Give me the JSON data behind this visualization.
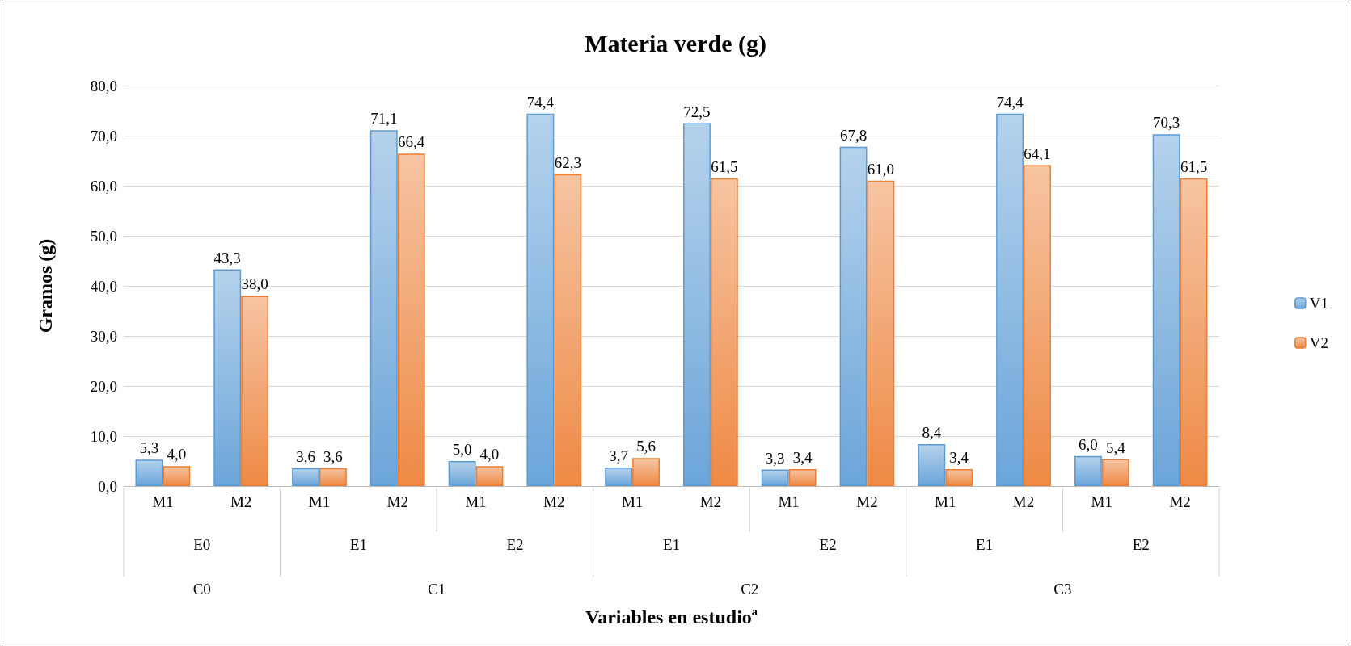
{
  "chart_data": {
    "type": "bar",
    "title": "Materia verde (g)",
    "xlabel": "Variables en estudioª",
    "ylabel": "Gramos (g)",
    "categories": [
      "M1",
      "M2",
      "M1",
      "M2",
      "M1",
      "M2",
      "M1",
      "M2",
      "M1",
      "M2",
      "M1",
      "M2",
      "M1",
      "M2"
    ],
    "series": [
      {
        "name": "V1",
        "color": "#5b9bd5",
        "values": [
          5.3,
          43.3,
          3.6,
          71.1,
          5.0,
          74.4,
          3.7,
          72.5,
          3.3,
          67.8,
          8.4,
          74.4,
          6.0,
          70.3
        ],
        "value_labels": [
          "5,3",
          "43,3",
          "3,6",
          "71,1",
          "5,0",
          "74,4",
          "3,7",
          "72,5",
          "3,3",
          "67,8",
          "8,4",
          "74,4",
          "6,0",
          "70,3"
        ]
      },
      {
        "name": "V2",
        "color": "#ed7d31",
        "values": [
          4.0,
          38.0,
          3.6,
          66.4,
          4.0,
          62.3,
          5.6,
          61.5,
          3.4,
          61.0,
          3.4,
          64.1,
          5.4,
          61.5
        ],
        "value_labels": [
          "4,0",
          "38,0",
          "3,6",
          "66,4",
          "4,0",
          "62,3",
          "5,6",
          "61,5",
          "3,4",
          "61,0",
          "3,4",
          "64,1",
          "5,4",
          "61,5"
        ]
      }
    ],
    "annotations": [
      "E0",
      "E1",
      "E2",
      "E1",
      "E2",
      "E1",
      "E2",
      "C0",
      "C1",
      "C2",
      "C3"
    ],
    "ylim": [
      0,
      80
    ],
    "yticks": [
      {
        "value": 0,
        "label": "0,0"
      },
      {
        "value": 10,
        "label": "10,0"
      },
      {
        "value": 20,
        "label": "20,0"
      },
      {
        "value": 30,
        "label": "30,0"
      },
      {
        "value": 40,
        "label": "40,0"
      },
      {
        "value": 50,
        "label": "50,0"
      },
      {
        "value": 60,
        "label": "60,0"
      },
      {
        "value": 70,
        "label": "70,0"
      },
      {
        "value": 80,
        "label": "80,0"
      }
    ],
    "grid": "y",
    "legend": "right"
  }
}
